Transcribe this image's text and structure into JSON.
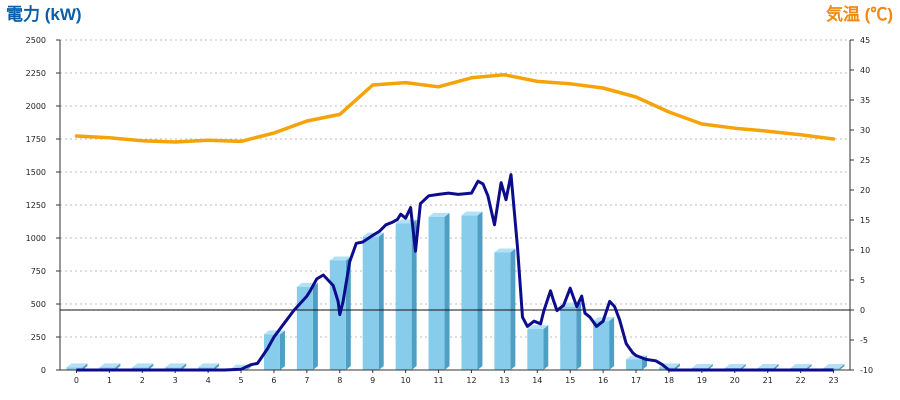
{
  "chart_data": {
    "type": "bar",
    "ylabel_left": "電力 (kW)",
    "ylabel_right": "気温 (℃)",
    "ylim_left": [
      0,
      2500
    ],
    "ylim_right": [
      -10,
      45
    ],
    "left_ticks": [
      0,
      250,
      500,
      750,
      1000,
      1250,
      1500,
      1750,
      2000,
      2250,
      2500
    ],
    "right_ticks": [
      -10,
      -5,
      0,
      5,
      10,
      15,
      20,
      25,
      30,
      35,
      40,
      45
    ],
    "x_ticks": [
      "0",
      "1",
      "2",
      "3",
      "4",
      "5",
      "6",
      "7",
      "8",
      "9",
      "10",
      "11",
      "12",
      "13",
      "14",
      "15",
      "16",
      "17",
      "18",
      "19",
      "20",
      "21",
      "22",
      "23"
    ],
    "grid": "horizontal-dotted",
    "colors": {
      "bars": "#87cceb",
      "bars_side": "#4f9fc4",
      "power_line": "#0d0d8c",
      "temperature_line": "#f5a30a",
      "left_title": "#0b5fa8",
      "right_title": "#f08a12"
    },
    "bars": {
      "axis": "left",
      "values": [
        20,
        20,
        20,
        20,
        20,
        10,
        270,
        630,
        830,
        1010,
        1110,
        1160,
        1170,
        890,
        310,
        480,
        370,
        80,
        20,
        15,
        15,
        15,
        15,
        15
      ]
    },
    "power_line": {
      "axis": "left",
      "points": [
        [
          0,
          0
        ],
        [
          1,
          0
        ],
        [
          2,
          0
        ],
        [
          3,
          0
        ],
        [
          4,
          0
        ],
        [
          4.5,
          0
        ],
        [
          5,
          5
        ],
        [
          5.3,
          40
        ],
        [
          5.5,
          50
        ],
        [
          5.8,
          160
        ],
        [
          6,
          250
        ],
        [
          6.3,
          350
        ],
        [
          6.6,
          450
        ],
        [
          7,
          560
        ],
        [
          7.1,
          600
        ],
        [
          7.3,
          690
        ],
        [
          7.5,
          720
        ],
        [
          7.8,
          640
        ],
        [
          7.95,
          520
        ],
        [
          8,
          420
        ],
        [
          8.1,
          520
        ],
        [
          8.3,
          820
        ],
        [
          8.5,
          960
        ],
        [
          8.7,
          970
        ],
        [
          9,
          1020
        ],
        [
          9.2,
          1050
        ],
        [
          9.4,
          1100
        ],
        [
          9.6,
          1120
        ],
        [
          9.75,
          1140
        ],
        [
          9.85,
          1180
        ],
        [
          10,
          1150
        ],
        [
          10.15,
          1230
        ],
        [
          10.3,
          900
        ],
        [
          10.45,
          1260
        ],
        [
          10.7,
          1320
        ],
        [
          11,
          1330
        ],
        [
          11.3,
          1340
        ],
        [
          11.6,
          1330
        ],
        [
          12,
          1340
        ],
        [
          12.2,
          1430
        ],
        [
          12.35,
          1410
        ],
        [
          12.5,
          1320
        ],
        [
          12.7,
          1100
        ],
        [
          12.9,
          1420
        ],
        [
          13.05,
          1290
        ],
        [
          13.2,
          1480
        ],
        [
          13.4,
          930
        ],
        [
          13.55,
          400
        ],
        [
          13.7,
          330
        ],
        [
          13.9,
          370
        ],
        [
          14.1,
          350
        ],
        [
          14.2,
          450
        ],
        [
          14.4,
          600
        ],
        [
          14.5,
          520
        ],
        [
          14.6,
          450
        ],
        [
          14.8,
          490
        ],
        [
          15,
          620
        ],
        [
          15.2,
          480
        ],
        [
          15.35,
          560
        ],
        [
          15.45,
          430
        ],
        [
          15.6,
          400
        ],
        [
          15.8,
          330
        ],
        [
          16,
          370
        ],
        [
          16.2,
          520
        ],
        [
          16.35,
          480
        ],
        [
          16.5,
          380
        ],
        [
          16.7,
          200
        ],
        [
          16.9,
          130
        ],
        [
          17,
          110
        ],
        [
          17.3,
          80
        ],
        [
          17.6,
          70
        ],
        [
          17.8,
          40
        ],
        [
          18,
          0
        ],
        [
          19,
          0
        ],
        [
          20,
          0
        ],
        [
          21,
          0
        ],
        [
          22,
          0
        ],
        [
          23,
          0
        ]
      ]
    },
    "temperature_line": {
      "axis": "right",
      "points": [
        [
          0,
          29
        ],
        [
          1,
          28.7
        ],
        [
          2,
          28.2
        ],
        [
          3,
          28
        ],
        [
          4,
          28.3
        ],
        [
          5,
          28.1
        ],
        [
          6,
          29.5
        ],
        [
          7,
          31.5
        ],
        [
          8,
          32.6
        ],
        [
          9,
          37.5
        ],
        [
          10,
          37.9
        ],
        [
          11,
          37.2
        ],
        [
          12,
          38.7
        ],
        [
          13,
          39.2
        ],
        [
          14,
          38.1
        ],
        [
          15,
          37.7
        ],
        [
          16,
          37
        ],
        [
          17,
          35.5
        ],
        [
          18,
          33
        ],
        [
          19,
          31
        ],
        [
          20,
          30.3
        ],
        [
          21,
          29.8
        ],
        [
          22,
          29.2
        ],
        [
          23,
          28.5
        ]
      ]
    }
  }
}
